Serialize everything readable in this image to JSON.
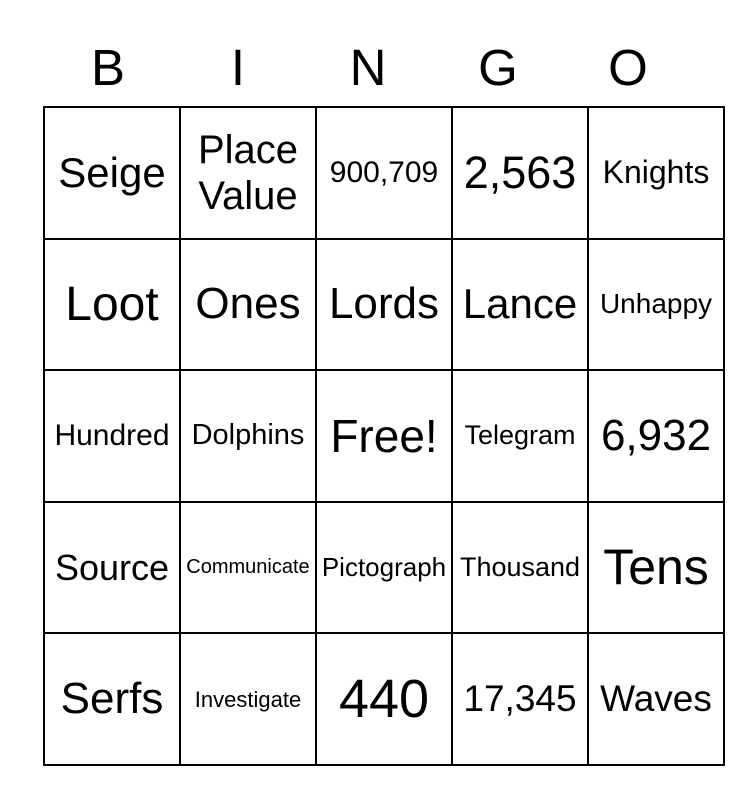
{
  "title": "BINGO",
  "header": {
    "letters": [
      "B",
      "I",
      "N",
      "G",
      "O"
    ]
  },
  "card": {
    "rows": [
      [
        {
          "label": "Seige",
          "font_px": 42
        },
        {
          "label": "Place Value",
          "font_px": 40
        },
        {
          "label": "900,709",
          "font_px": 30
        },
        {
          "label": "2,563",
          "font_px": 45
        },
        {
          "label": "Knights",
          "font_px": 32
        }
      ],
      [
        {
          "label": "Loot",
          "font_px": 48
        },
        {
          "label": "Ones",
          "font_px": 44
        },
        {
          "label": "Lords",
          "font_px": 44
        },
        {
          "label": "Lance",
          "font_px": 42
        },
        {
          "label": "Unhappy",
          "font_px": 28
        }
      ],
      [
        {
          "label": "Hundred",
          "font_px": 30
        },
        {
          "label": "Dolphins",
          "font_px": 29
        },
        {
          "label": "Free!",
          "font_px": 46
        },
        {
          "label": "Telegram",
          "font_px": 27
        },
        {
          "label": "6,932",
          "font_px": 44
        }
      ],
      [
        {
          "label": "Source",
          "font_px": 36
        },
        {
          "label": "Communicate",
          "font_px": 20
        },
        {
          "label": "Pictograph",
          "font_px": 26
        },
        {
          "label": "Thousand",
          "font_px": 27
        },
        {
          "label": "Tens",
          "font_px": 50
        }
      ],
      [
        {
          "label": "Serfs",
          "font_px": 44
        },
        {
          "label": "Investigate",
          "font_px": 22
        },
        {
          "label": "440",
          "font_px": 54
        },
        {
          "label": "17,345",
          "font_px": 37
        },
        {
          "label": "Waves",
          "font_px": 37
        }
      ]
    ],
    "free_cell_label": "Free!"
  },
  "colors": {
    "background": "#ffffff",
    "grid_line": "#000000",
    "text": "#000000"
  }
}
